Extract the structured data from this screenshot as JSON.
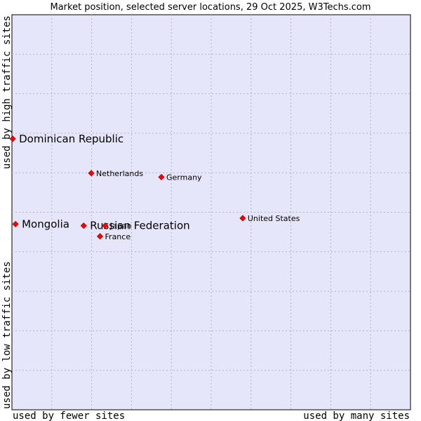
{
  "chart_data": {
    "type": "scatter",
    "title": "Market position, selected server locations, 29 Oct 2025, W3Techs.com",
    "xlabel_left": "used by fewer sites",
    "xlabel_right": "used by many sites",
    "ylabel_bottom": "used by low traffic sites",
    "ylabel_top": "used by high traffic sites",
    "xlim": [
      0,
      100
    ],
    "ylim": [
      0,
      100
    ],
    "colors": {
      "plot_bg": "#e6e6fa",
      "grid": "#b4b4c8",
      "point": "#ff0000",
      "point_edge": "#b00000"
    },
    "points": [
      {
        "label": "Dominican Republic",
        "x": 0.2,
        "y": 68.6,
        "size": "large"
      },
      {
        "label": "Netherlands",
        "x": 19.9,
        "y": 59.9,
        "size": "small"
      },
      {
        "label": "Germany",
        "x": 37.5,
        "y": 58.9,
        "size": "small"
      },
      {
        "label": "United States",
        "x": 57.9,
        "y": 48.5,
        "size": "small"
      },
      {
        "label": "Mongolia",
        "x": 0.9,
        "y": 47.0,
        "size": "large"
      },
      {
        "label": "Russian Federation",
        "x": 18.0,
        "y": 46.6,
        "size": "large"
      },
      {
        "label": "Japan",
        "x": 23.4,
        "y": 46.6,
        "size": "small"
      },
      {
        "label": "France",
        "x": 22.1,
        "y": 43.9,
        "size": "small"
      }
    ]
  }
}
